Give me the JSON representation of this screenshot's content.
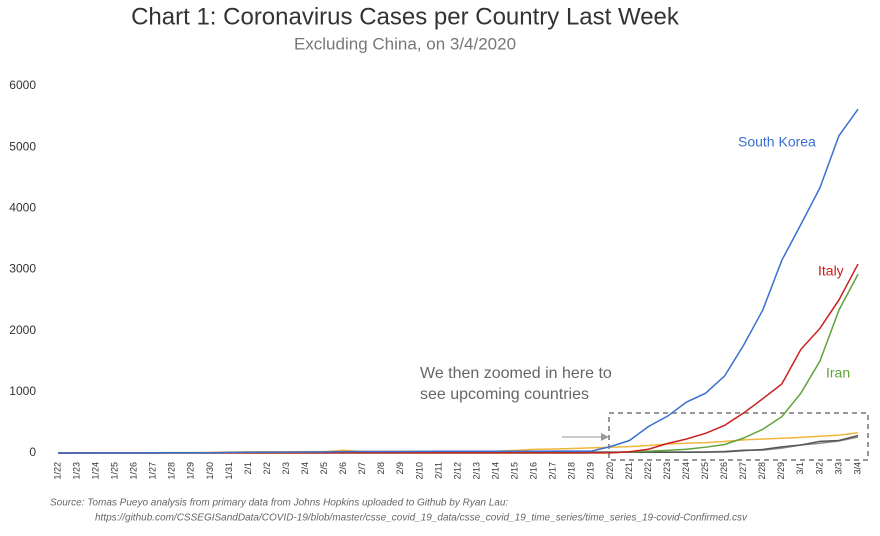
{
  "chart_data": {
    "type": "line",
    "title": "Chart 1: Coronavirus Cases per Country Last Week",
    "subtitle": "Excluding China, on 3/4/2020",
    "categories": [
      "1/22",
      "1/23",
      "1/24",
      "1/25",
      "1/26",
      "1/27",
      "1/28",
      "1/29",
      "1/30",
      "1/31",
      "2/1",
      "2/2",
      "2/3",
      "2/4",
      "2/5",
      "2/6",
      "2/7",
      "2/8",
      "2/9",
      "2/10",
      "2/11",
      "2/12",
      "2/13",
      "2/14",
      "2/15",
      "2/16",
      "2/17",
      "2/18",
      "2/19",
      "2/20",
      "2/21",
      "2/22",
      "2/23",
      "2/24",
      "2/25",
      "2/26",
      "2/27",
      "2/28",
      "2/29",
      "3/1",
      "3/2",
      "3/3",
      "3/4"
    ],
    "series": [
      {
        "name": "South Korea",
        "color": "#3a6fd1",
        "values": [
          1,
          1,
          2,
          2,
          3,
          4,
          4,
          4,
          4,
          11,
          12,
          15,
          15,
          16,
          19,
          23,
          24,
          24,
          25,
          27,
          28,
          28,
          28,
          28,
          28,
          29,
          30,
          31,
          31,
          104,
          204,
          433,
          602,
          833,
          977,
          1261,
          1766,
          2337,
          3150,
          3736,
          4335,
          5186,
          5621
        ]
      },
      {
        "name": "Italy",
        "color": "#c9201e",
        "values": [
          0,
          0,
          0,
          0,
          0,
          0,
          0,
          0,
          0,
          2,
          2,
          2,
          2,
          2,
          2,
          2,
          3,
          3,
          3,
          3,
          3,
          3,
          3,
          3,
          3,
          3,
          3,
          3,
          3,
          3,
          20,
          62,
          155,
          229,
          322,
          453,
          655,
          888,
          1128,
          1694,
          2036,
          2502,
          3089
        ]
      },
      {
        "name": "Iran",
        "color": "#5fa33a",
        "values": [
          0,
          0,
          0,
          0,
          0,
          0,
          0,
          0,
          0,
          0,
          0,
          0,
          0,
          0,
          0,
          0,
          0,
          0,
          0,
          0,
          0,
          0,
          0,
          0,
          0,
          0,
          0,
          0,
          2,
          5,
          18,
          28,
          43,
          61,
          95,
          139,
          245,
          388,
          593,
          978,
          1501,
          2336,
          2922
        ]
      },
      {
        "color": "#f2b63c",
        "values": [
          2,
          1,
          2,
          2,
          4,
          4,
          7,
          7,
          11,
          15,
          20,
          20,
          20,
          22,
          22,
          45,
          25,
          25,
          26,
          26,
          26,
          28,
          28,
          29,
          43,
          59,
          66,
          74,
          84,
          94,
          105,
          122,
          147,
          159,
          170,
          189,
          214,
          228,
          241,
          256,
          274,
          293,
          331
        ]
      },
      {
        "color": "#555555",
        "values": [
          0,
          0,
          2,
          3,
          3,
          3,
          4,
          5,
          5,
          5,
          6,
          6,
          6,
          6,
          6,
          6,
          6,
          11,
          11,
          11,
          11,
          11,
          11,
          11,
          12,
          12,
          12,
          12,
          12,
          12,
          12,
          12,
          12,
          12,
          14,
          18,
          38,
          57,
          100,
          130,
          191,
          204,
          285
        ]
      },
      {
        "color": "#8a8a8a",
        "values": [
          0,
          0,
          0,
          0,
          0,
          1,
          4,
          4,
          4,
          5,
          8,
          10,
          12,
          12,
          12,
          12,
          13,
          13,
          14,
          14,
          16,
          16,
          16,
          16,
          16,
          16,
          16,
          16,
          16,
          16,
          16,
          16,
          16,
          16,
          17,
          27,
          46,
          48,
          79,
          130,
          159,
          196,
          262
        ]
      }
    ],
    "ylim": [
      0,
      6000
    ],
    "yticks": [
      0,
      1000,
      2000,
      3000,
      4000,
      5000,
      6000
    ],
    "grid": false,
    "annotation": [
      "We then zoomed in here to",
      "see upcoming countries"
    ],
    "source": [
      "Source: Tomas Pueyo analysis from primary data from Johns Hopkins uploaded to Github by Ryan Lau:",
      "https://github.com/CSSEGISandData/COVID-19/blob/master/csse_covid_19_data/csse_covid_19_time_series/time_series_19-covid-Confirmed.csv"
    ]
  }
}
